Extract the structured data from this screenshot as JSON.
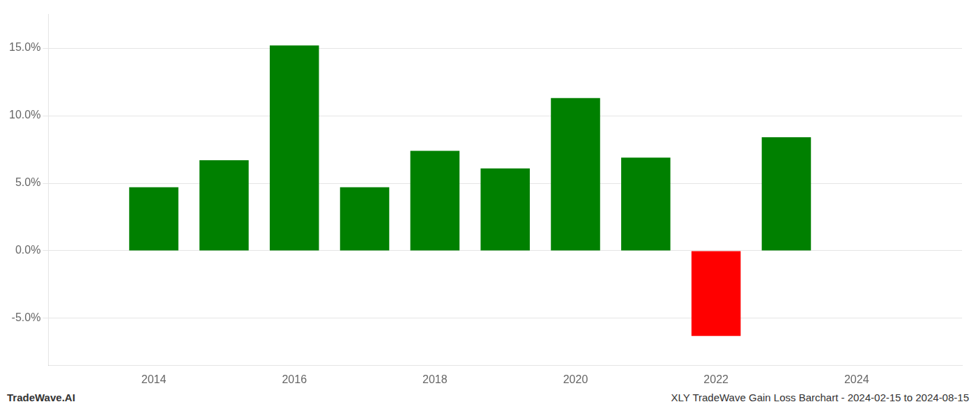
{
  "chart_data": {
    "type": "bar",
    "title": "XLY TradeWave Gain Loss Barchart - 2024-02-15 to 2024-08-15",
    "annotations": [
      "TradeWave.AI"
    ],
    "x": [
      2014,
      2015,
      2016,
      2017,
      2018,
      2019,
      2020,
      2021,
      2022,
      2023
    ],
    "values": [
      0.047,
      0.067,
      0.152,
      0.047,
      0.074,
      0.061,
      0.113,
      0.069,
      -0.063,
      0.084
    ],
    "colors": [
      "#008000",
      "#008000",
      "#008000",
      "#008000",
      "#008000",
      "#008000",
      "#008000",
      "#008000",
      "#ff0000",
      "#008000"
    ],
    "xlim": [
      2012.5,
      2025.5
    ],
    "xticks": [
      2014,
      2016,
      2018,
      2020,
      2022,
      2024
    ],
    "ylim": [
      -0.085,
      0.175
    ],
    "yticks": [
      {
        "value": -0.05,
        "label": "-5.0%"
      },
      {
        "value": 0.0,
        "label": "0.0%"
      },
      {
        "value": 0.05,
        "label": "5.0%"
      },
      {
        "value": 0.1,
        "label": "10.0%"
      },
      {
        "value": 0.15,
        "label": "15.0%"
      }
    ],
    "grid": true
  }
}
